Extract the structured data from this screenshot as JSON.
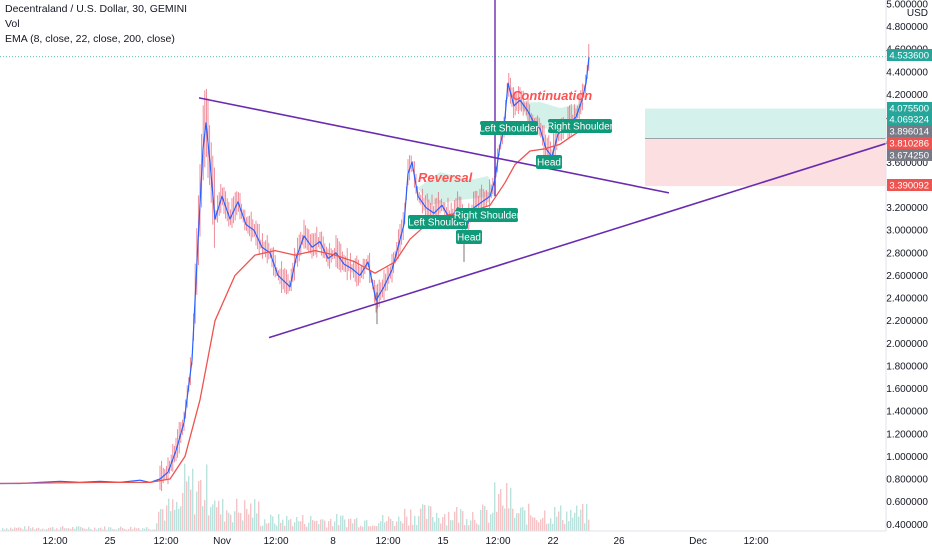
{
  "header": {
    "title": "Decentraland / U.S. Dollar, 30, GEMINI",
    "volume_label": "Vol",
    "indicator": "EMA (8, close, 22, close, 200, close)"
  },
  "colors": {
    "price_line": "#2962ff",
    "candles": "#e8576a",
    "ema_fast": "#1e4fd8",
    "ema_slow": "#ef5350",
    "trendline": "#6a2bb0",
    "pattern_label_bg": "#119a7a",
    "annotation_text": "#ff5252",
    "pattern_fill": "#c8eee2",
    "profit_zone": "#cdeee8",
    "loss_zone": "#fcd9db",
    "current_price": "#26a69a"
  },
  "chart_data": {
    "type": "line",
    "title": "Decentraland / U.S. Dollar, 30, GEMINI",
    "xlabel": "",
    "ylabel": "USD",
    "ylim": [
      0.32,
      5.05
    ],
    "grid": false,
    "y_ticks": [
      "5.000000",
      "4.800000",
      "4.600000",
      "4.400000",
      "4.200000",
      "4.000000",
      "3.800000",
      "3.600000",
      "3.200000",
      "3.000000",
      "2.800000",
      "2.600000",
      "2.400000",
      "2.200000",
      "2.000000",
      "1.800000",
      "1.600000",
      "1.400000",
      "1.200000",
      "1.000000",
      "0.800000",
      "0.600000",
      "0.400000"
    ],
    "y_axis_unit": "USD",
    "x_tick_labels": [
      "12:00",
      "25",
      "12:00",
      "Nov",
      "12:00",
      "8",
      "12:00",
      "15",
      "12:00",
      "22",
      "26",
      "Dec",
      "12:00"
    ],
    "price_badges": [
      {
        "value": "4.533600",
        "color": "#26a69a"
      },
      {
        "value": "4.075500",
        "color": "#26a69a"
      },
      {
        "value": "4.069324",
        "color": "#26a69a"
      },
      {
        "value": "3.896014",
        "color": "#787b86"
      },
      {
        "value": "3.810286",
        "color": "#ef5350"
      },
      {
        "value": "3.674250",
        "color": "#787b86"
      },
      {
        "value": "3.390092",
        "color": "#ef5350"
      }
    ],
    "series": [
      {
        "name": "Price",
        "points": [
          [
            0,
            0.76
          ],
          [
            20,
            0.76
          ],
          [
            40,
            0.77
          ],
          [
            60,
            0.78
          ],
          [
            80,
            0.77
          ],
          [
            100,
            0.78
          ],
          [
            120,
            0.77
          ],
          [
            140,
            0.79
          ],
          [
            150,
            0.77
          ],
          [
            160,
            0.8
          ],
          [
            168,
            0.86
          ],
          [
            176,
            1.05
          ],
          [
            184,
            1.3
          ],
          [
            192,
            1.85
          ],
          [
            198,
            2.9
          ],
          [
            203,
            3.72
          ],
          [
            206,
            3.95
          ],
          [
            210,
            3.6
          ],
          [
            215,
            3.1
          ],
          [
            222,
            3.3
          ],
          [
            230,
            3.1
          ],
          [
            238,
            3.25
          ],
          [
            246,
            3.05
          ],
          [
            254,
            3.0
          ],
          [
            262,
            2.85
          ],
          [
            270,
            2.8
          ],
          [
            278,
            2.6
          ],
          [
            284,
            2.55
          ],
          [
            290,
            2.5
          ],
          [
            296,
            2.75
          ],
          [
            304,
            2.95
          ],
          [
            312,
            2.85
          ],
          [
            320,
            2.9
          ],
          [
            328,
            2.75
          ],
          [
            336,
            2.8
          ],
          [
            344,
            2.7
          ],
          [
            352,
            2.66
          ],
          [
            360,
            2.6
          ],
          [
            368,
            2.72
          ],
          [
            376,
            2.38
          ],
          [
            384,
            2.5
          ],
          [
            392,
            2.65
          ],
          [
            398,
            2.85
          ],
          [
            404,
            3.05
          ],
          [
            408,
            3.5
          ],
          [
            412,
            3.6
          ],
          [
            418,
            3.3
          ],
          [
            426,
            3.2
          ],
          [
            434,
            3.15
          ],
          [
            442,
            3.22
          ],
          [
            450,
            3.1
          ],
          [
            458,
            3.2
          ],
          [
            466,
            3.02
          ],
          [
            474,
            3.2
          ],
          [
            482,
            3.25
          ],
          [
            490,
            3.3
          ],
          [
            495,
            3.45
          ],
          [
            500,
            3.75
          ],
          [
            504,
            3.9
          ],
          [
            508,
            4.3
          ],
          [
            514,
            4.1
          ],
          [
            520,
            4.15
          ],
          [
            528,
            4.05
          ],
          [
            534,
            3.95
          ],
          [
            540,
            3.9
          ],
          [
            546,
            3.72
          ],
          [
            552,
            3.65
          ],
          [
            558,
            3.85
          ],
          [
            564,
            3.9
          ],
          [
            570,
            3.95
          ],
          [
            576,
            4.0
          ],
          [
            582,
            4.15
          ],
          [
            586,
            4.3
          ],
          [
            589,
            4.53
          ]
        ]
      },
      {
        "name": "EMA slow",
        "points": [
          [
            0,
            0.76
          ],
          [
            100,
            0.77
          ],
          [
            150,
            0.77
          ],
          [
            170,
            0.8
          ],
          [
            185,
            1.0
          ],
          [
            200,
            1.5
          ],
          [
            215,
            2.2
          ],
          [
            235,
            2.6
          ],
          [
            255,
            2.78
          ],
          [
            275,
            2.82
          ],
          [
            295,
            2.78
          ],
          [
            315,
            2.82
          ],
          [
            335,
            2.78
          ],
          [
            355,
            2.72
          ],
          [
            375,
            2.62
          ],
          [
            395,
            2.72
          ],
          [
            410,
            2.92
          ],
          [
            430,
            3.08
          ],
          [
            450,
            3.14
          ],
          [
            470,
            3.16
          ],
          [
            490,
            3.22
          ],
          [
            505,
            3.42
          ],
          [
            515,
            3.58
          ],
          [
            530,
            3.7
          ],
          [
            545,
            3.72
          ],
          [
            560,
            3.76
          ],
          [
            575,
            3.85
          ],
          [
            589,
            3.92
          ]
        ]
      }
    ]
  },
  "drawings": {
    "labels": [
      {
        "text": "Reversal",
        "style": "italic-red"
      },
      {
        "text": "Continuation",
        "style": "italic-red"
      },
      {
        "text": "Left Shoulder",
        "style": "badge"
      },
      {
        "text": "Right Shoulder",
        "style": "badge"
      },
      {
        "text": "Head",
        "style": "badge"
      },
      {
        "text": "Left Shoulder",
        "style": "badge"
      },
      {
        "text": "Right Shoulder",
        "style": "badge"
      },
      {
        "text": "Head",
        "style": "badge"
      }
    ],
    "trendlines": [
      {
        "name": "upper",
        "from": [
          "x199",
          4.17
        ],
        "to": [
          "x669",
          3.33
        ]
      },
      {
        "name": "lower",
        "from": [
          "x269",
          2.05
        ],
        "to": [
          "x898",
          3.8
        ]
      }
    ],
    "position": {
      "entry": 3.810286,
      "target": 4.0755,
      "stop": 3.390092
    }
  }
}
